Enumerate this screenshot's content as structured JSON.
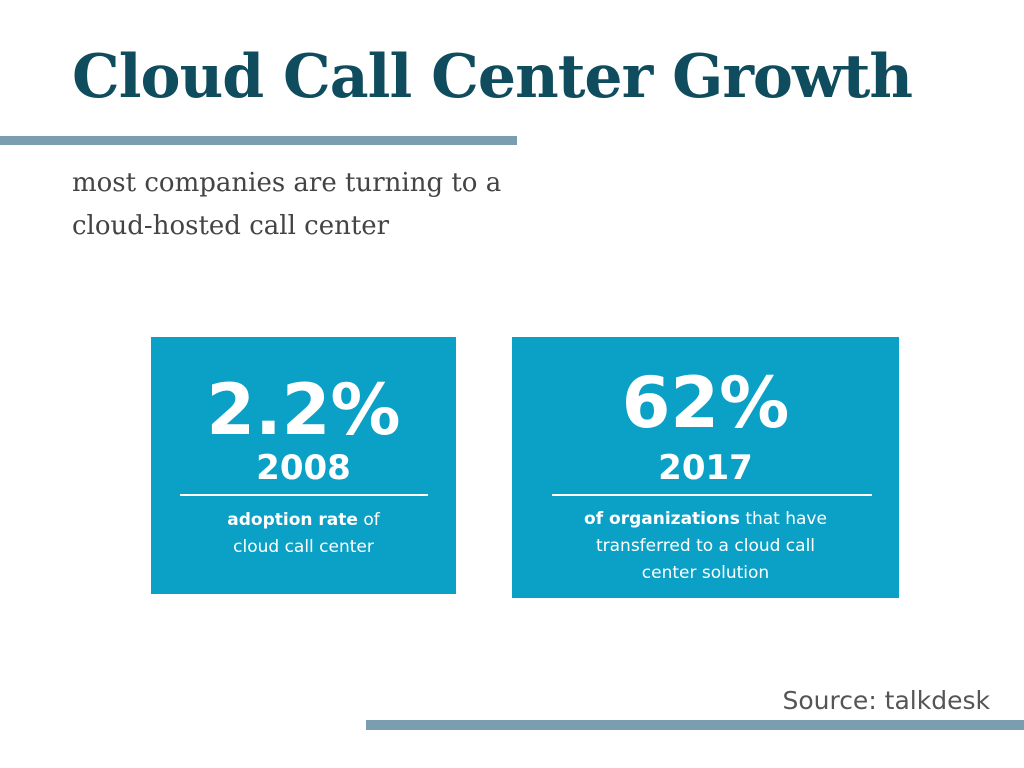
{
  "header": {
    "title": "Cloud Call Center Growth",
    "subtitle": [
      "most companies are turning to a",
      "cloud-hosted call center"
    ]
  },
  "cards": [
    {
      "stat": "2.2%",
      "year": "2008",
      "description_bold": "adoption rate",
      "description": "of cloud call center"
    },
    {
      "stat": "62%",
      "year": "2017",
      "description_bold": "of organizations",
      "description": "that have transferred to a cloud call center solution"
    }
  ],
  "footer": {
    "source": "Source: talkdesk"
  }
}
